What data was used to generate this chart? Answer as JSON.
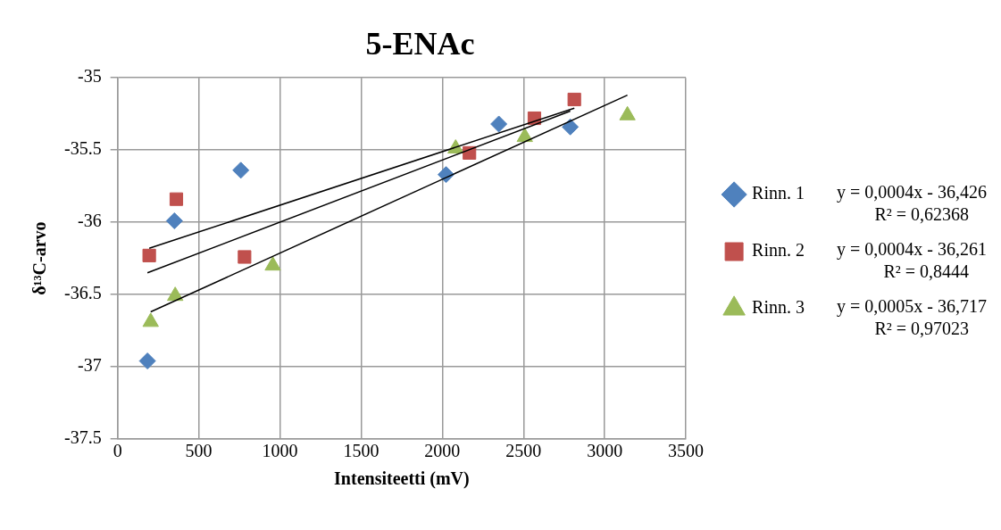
{
  "chart_data": {
    "type": "scatter",
    "title": "5-ENAc",
    "xlabel": "Intensiteetti (mV)",
    "ylabel": "δ¹³C-arvo",
    "xlim": [
      0,
      3500
    ],
    "xticks": [
      0,
      500,
      1000,
      1500,
      2000,
      2500,
      3000,
      3500
    ],
    "ylim": [
      -37.5,
      -35
    ],
    "yticks": [
      -37.5,
      -37,
      -36.5,
      -36,
      -35.5,
      -35
    ],
    "grid": true,
    "legend": "right",
    "series": [
      {
        "name": "Rinn. 1",
        "color": "#4f81bd",
        "marker": "diamond",
        "x": [
          184,
          350,
          759,
          2023,
          2348,
          2788
        ],
        "values": [
          -36.96,
          -35.99,
          -35.64,
          -35.67,
          -35.32,
          -35.34
        ]
      },
      {
        "name": "Rinn. 2",
        "color": "#c0504d",
        "marker": "square",
        "x": [
          195,
          362,
          782,
          2167,
          2567,
          2813
        ],
        "values": [
          -36.23,
          -35.84,
          -36.24,
          -35.52,
          -35.28,
          -35.15
        ]
      },
      {
        "name": "Rinn. 3",
        "color": "#9bbb59",
        "marker": "triangle",
        "x": [
          204,
          355,
          956,
          2082,
          2508,
          3140
        ],
        "values": [
          -36.69,
          -36.51,
          -36.3,
          -35.49,
          -35.41,
          -35.26
        ]
      },
      {
        "type": "line",
        "color": "#000000",
        "marker": "none",
        "x": [
          184,
          2788
        ],
        "values": [
          -36.35,
          -35.23
        ]
      },
      {
        "type": "line",
        "color": "#000000",
        "marker": "none",
        "x": [
          195,
          2813
        ],
        "values": [
          -36.18,
          -35.21
        ]
      },
      {
        "type": "line",
        "color": "#000000",
        "marker": "none",
        "x": [
          204,
          3140
        ],
        "values": [
          -36.62,
          -35.12
        ]
      }
    ],
    "annotations": [
      "y = 0,0004x - 36,426",
      "R² = 0,62368",
      "y = 0,0004x - 36,261",
      "R² = 0,8444",
      "y = 0,0005x - 36,717",
      "R² = 0,97023"
    ]
  }
}
